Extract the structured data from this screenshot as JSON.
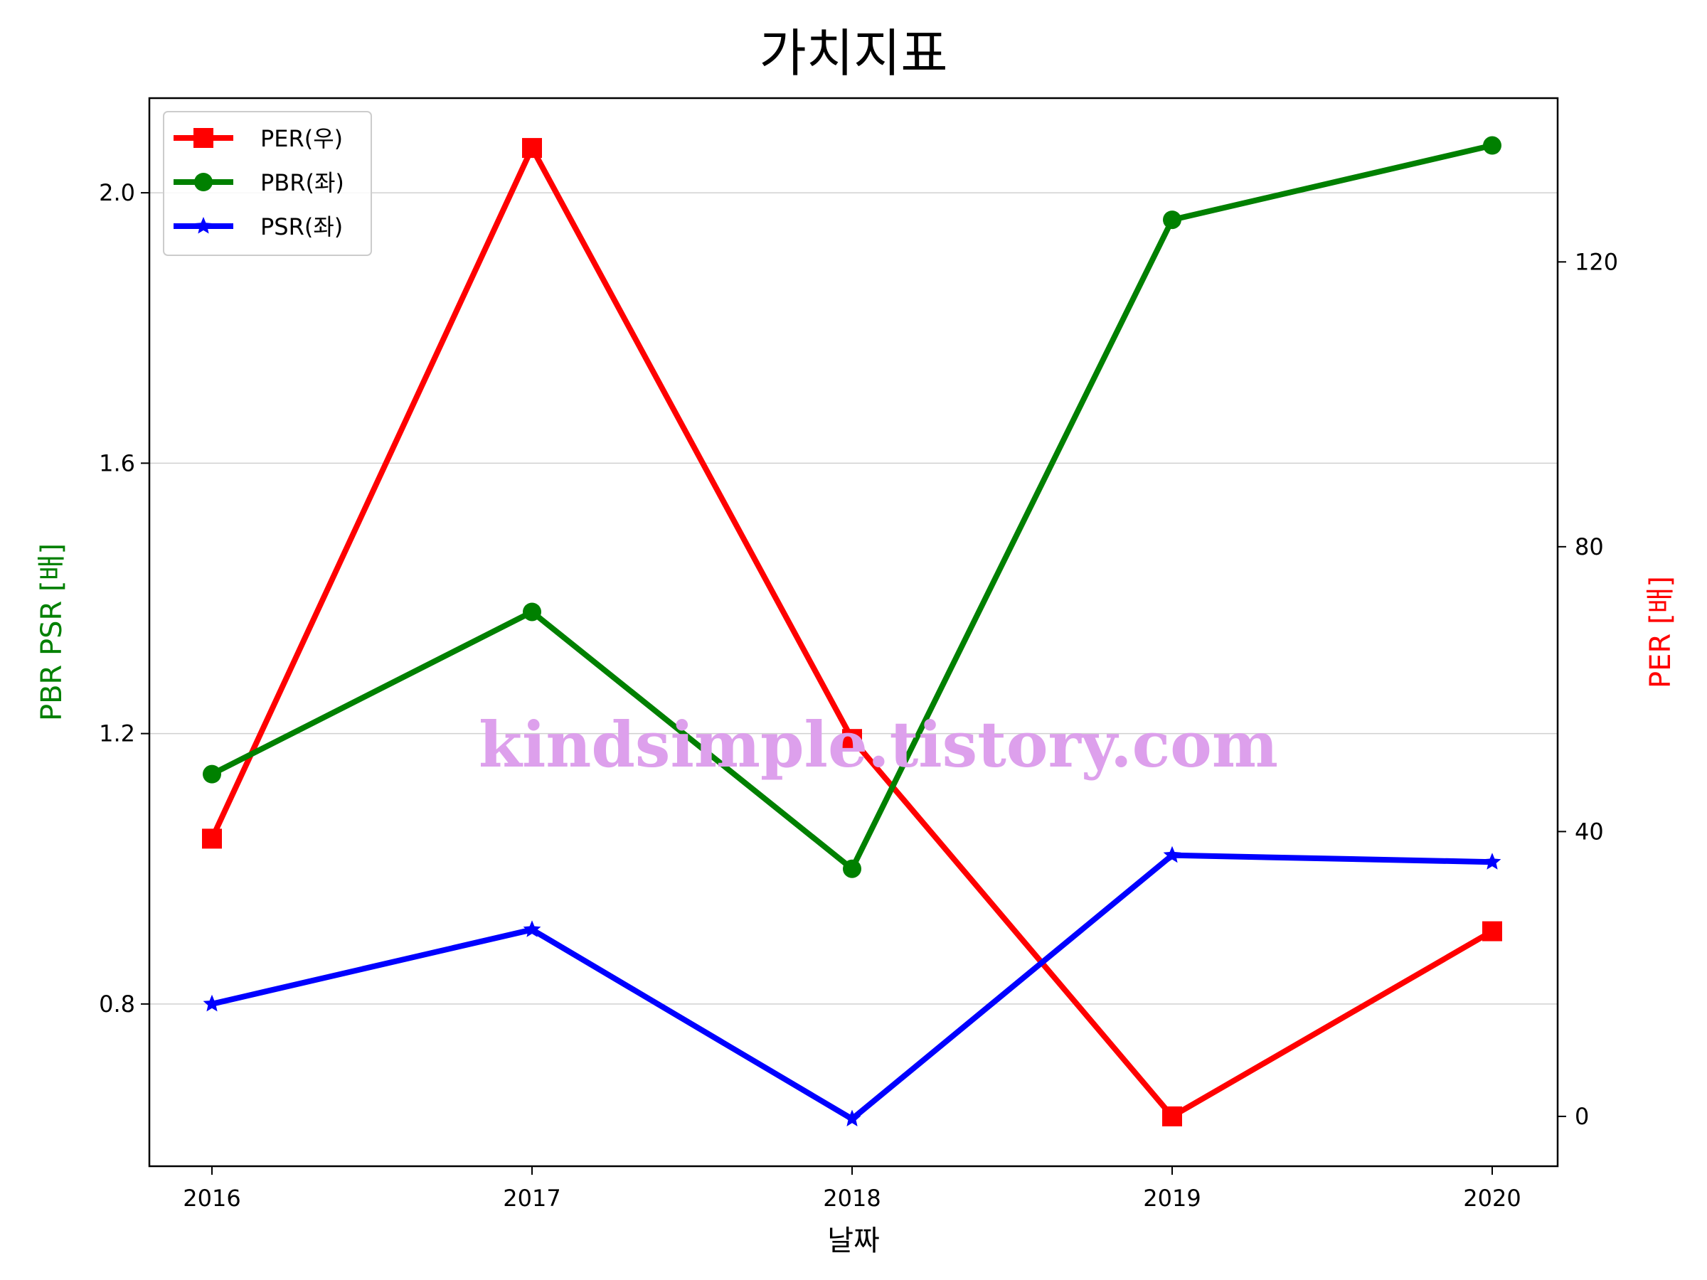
{
  "chart_data": {
    "type": "line",
    "title": "가치지표",
    "xlabel": "날짜",
    "ylabel_left": "PBR PSR [배]",
    "ylabel_right": "PER [배]",
    "categories": [
      "2016",
      "2017",
      "2018",
      "2019",
      "2020"
    ],
    "left_axis": {
      "ticks": [
        "0.8",
        "1.2",
        "1.6",
        "2.0"
      ],
      "ylim": [
        0.56,
        2.14
      ],
      "grid": true
    },
    "right_axis": {
      "ticks": [
        "0",
        "40",
        "80",
        "120"
      ],
      "ylim": [
        -7,
        143
      ]
    },
    "legend_position": "top-left",
    "series": [
      {
        "name": "PER(우)",
        "axis": "right",
        "color": "#ff0000",
        "marker": "square",
        "values": [
          39,
          136,
          53,
          0,
          26
        ]
      },
      {
        "name": "PBR(좌)",
        "axis": "left",
        "color": "#008000",
        "marker": "circle",
        "values": [
          1.14,
          1.38,
          1.0,
          1.96,
          2.07
        ]
      },
      {
        "name": "PSR(좌)",
        "axis": "left",
        "color": "#0000ff",
        "marker": "star",
        "values": [
          0.8,
          0.91,
          0.63,
          1.02,
          1.01
        ]
      }
    ],
    "watermark": {
      "text": "kindsimple.tistory.com",
      "color": "#dda0ec"
    }
  }
}
